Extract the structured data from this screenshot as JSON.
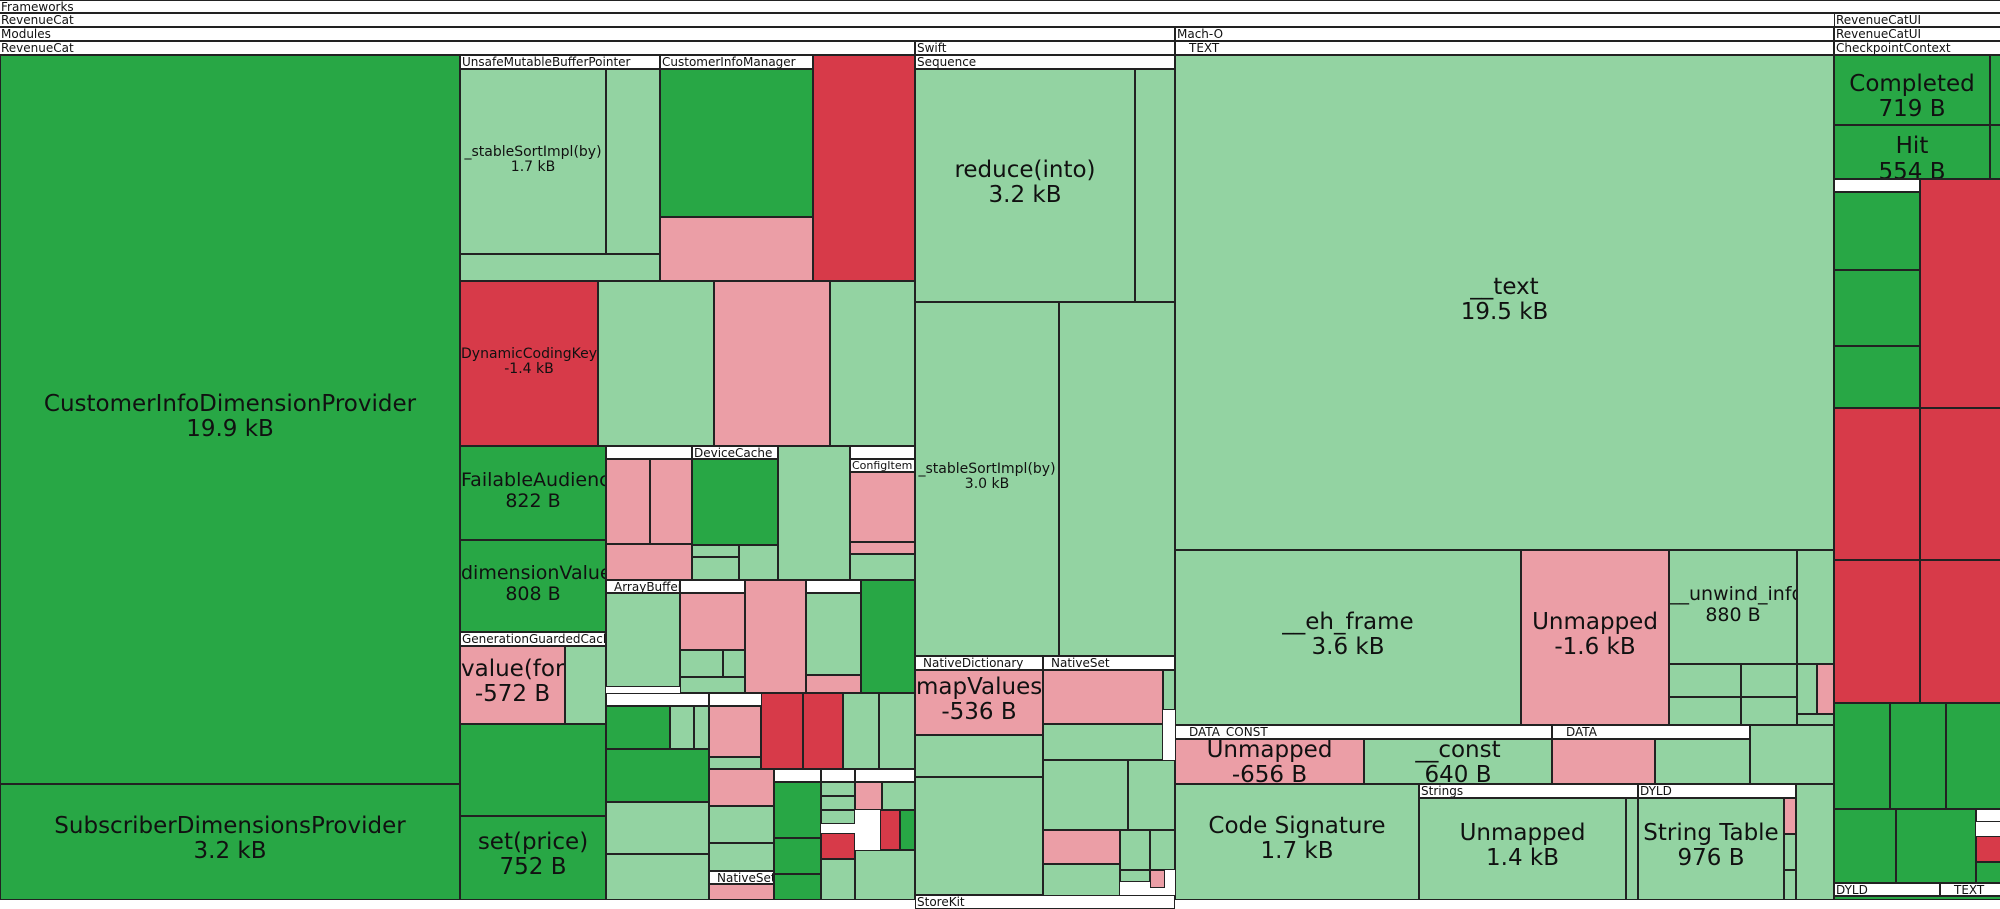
{
  "colors": {
    "size_decrease": "#28a745",
    "size_decrease_small": "#93d3a2",
    "size_increase": "#d73a49",
    "size_increase_small": "#eb9ea6"
  },
  "headers": {
    "frameworks": "Frameworks",
    "revenuecat_1": "RevenueCat",
    "modules": "Modules",
    "revenuecat_2": "RevenueCat",
    "unsafe_mutable_buffer_pointer": "UnsafeMutableBufferPointer",
    "customer_info_manager": "CustomerInfoManager",
    "swift": "Swift",
    "sequence": "Sequence",
    "mach_o": "Mach-O",
    "text_segment": "__TEXT",
    "revenuecat_ui_1": "RevenueCatUI",
    "revenuecat_ui_2": "RevenueCatUI",
    "checkpoint_context": "CheckpointContext",
    "device_cache": "DeviceCache",
    "config_item": "ConfigItem",
    "generation_guarded_cache": "GenerationGuardedCache",
    "array_buffer": "_ArrayBuffer",
    "native_dictionary": "_NativeDictionary",
    "native_set_1": "_NativeSet",
    "native_set_2": "_NativeSet",
    "data_const": "__DATA_CONST",
    "data": "__DATA",
    "strings": "Strings",
    "dyld_1": "DYLD",
    "dyld_2": "DYLD",
    "text_2": "__TEXT",
    "storekit": "StoreKit"
  },
  "chart_data": {
    "type": "treemap",
    "cells": [
      {
        "name": "CustomerInfoDimensionProvider",
        "value": "19.9 kB",
        "delta": "decrease"
      },
      {
        "name": "SubscriberDimensionsProvider",
        "value": "3.2 kB",
        "delta": "decrease"
      },
      {
        "name": "_stableSortImpl(by)",
        "value": "1.7 kB",
        "delta": "decrease"
      },
      {
        "name": "DynamicCodingKey",
        "value": "-1.4 kB",
        "delta": "increase"
      },
      {
        "name": "FailableAudience",
        "value": "822 B",
        "delta": "decrease"
      },
      {
        "name": "dimensionValue",
        "value": "808 B",
        "delta": "decrease"
      },
      {
        "name": "value(for)",
        "value": "-572 B",
        "delta": "increase"
      },
      {
        "name": "set(price)",
        "value": "752 B",
        "delta": "decrease"
      },
      {
        "name": "reduce(into)",
        "value": "3.2 kB",
        "delta": "decrease"
      },
      {
        "name": "_stableSortImpl(by)",
        "value": "3.0 kB",
        "delta": "decrease"
      },
      {
        "name": "mapValues",
        "value": "-536 B",
        "delta": "increase"
      },
      {
        "name": "__text",
        "value": "19.5 kB",
        "delta": "decrease"
      },
      {
        "name": "__eh_frame",
        "value": "3.6 kB",
        "delta": "decrease"
      },
      {
        "name": "Unmapped",
        "value": "-1.6 kB",
        "delta": "increase"
      },
      {
        "name": "__unwind_info",
        "value": "880 B",
        "delta": "decrease"
      },
      {
        "name": "Unmapped",
        "value": "-656 B",
        "delta": "increase"
      },
      {
        "name": "__const",
        "value": "640 B",
        "delta": "decrease"
      },
      {
        "name": "Code Signature",
        "value": "1.7 kB",
        "delta": "decrease"
      },
      {
        "name": "Unmapped",
        "value": "1.4 kB",
        "delta": "decrease"
      },
      {
        "name": "String Table",
        "value": "976 B",
        "delta": "decrease"
      },
      {
        "name": "Completed",
        "value": "719 B",
        "delta": "decrease"
      },
      {
        "name": "Hit",
        "value": "554 B",
        "delta": "decrease"
      }
    ]
  }
}
